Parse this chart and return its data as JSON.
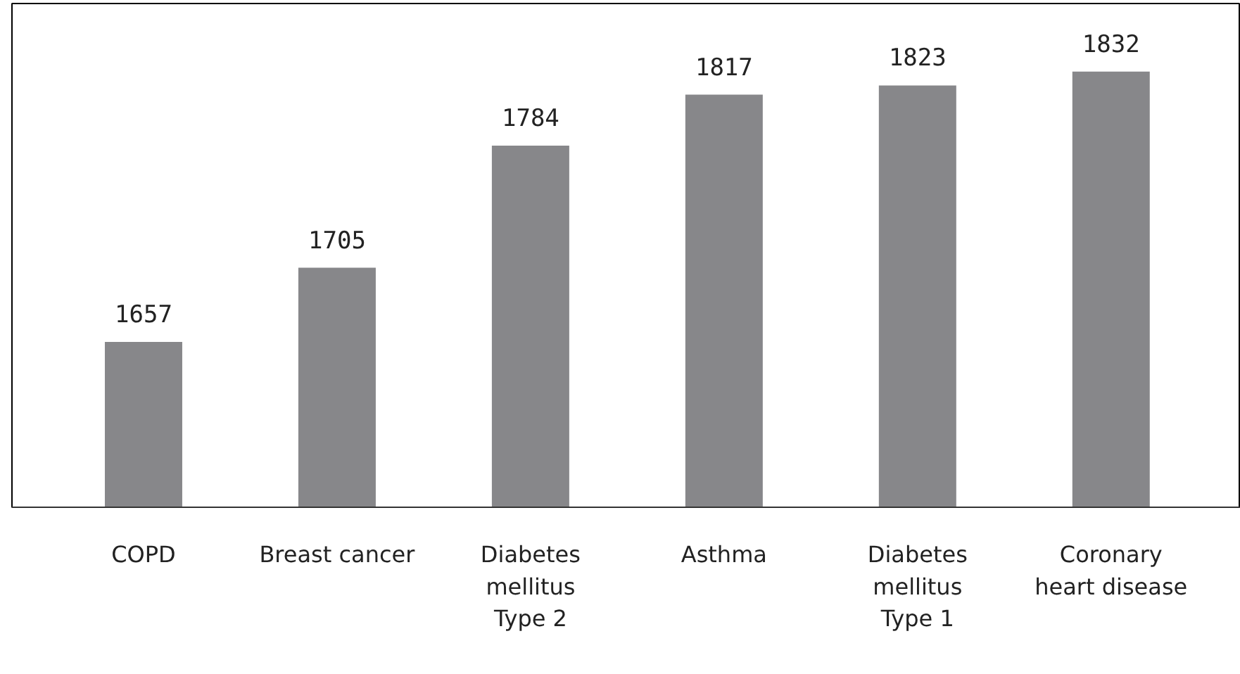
{
  "chart_data": {
    "type": "bar",
    "categories": [
      "COPD",
      "Breast cancer",
      "Diabetes\nmellitus\nType 2",
      "Asthma",
      "Diabetes\nmellitus\nType 1",
      "Coronary\nheart disease"
    ],
    "values": [
      1657,
      1705,
      1784,
      1817,
      1823,
      1832
    ],
    "color": "#87878a",
    "ylim": [
      1550,
      1876
    ],
    "data_labels": true,
    "grid": false
  }
}
